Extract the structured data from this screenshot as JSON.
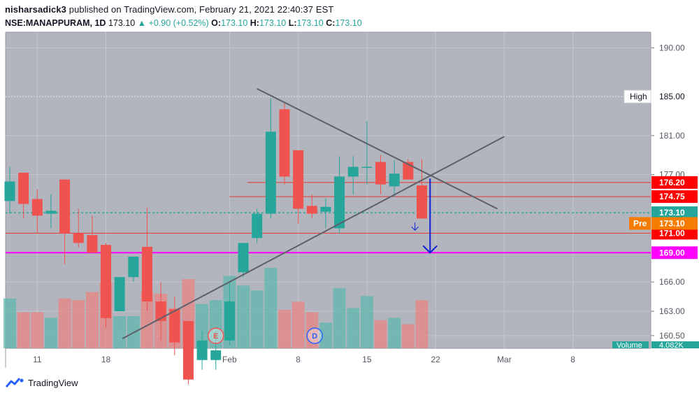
{
  "header": {
    "author": "nisharsadick3",
    "published_text": "published on TradingView.com, February 21, 2021 22:40:37 EST",
    "symbol": "NSE:MANAPPURAM, 1D",
    "last": "173.10",
    "change": "+0.90 (+0.52%)",
    "o_label": "O:",
    "o_value": "173.10",
    "h_label": "H:",
    "h_value": "173.10",
    "l_label": "L:",
    "l_value": "173.10",
    "c_label": "C:",
    "c_value": "173.10"
  },
  "footer": {
    "brand": "TradingView"
  },
  "colors": {
    "up": "#26a69a",
    "down": "#ef5350",
    "background": "#b2b5be",
    "magenta_line": "#ff00ff",
    "red_level": "#e53935",
    "arrow": "#0d1fd8",
    "trend": "#5d606b"
  },
  "chart_data": {
    "type": "candlestick",
    "symbol": "NSE:MANAPPURAM",
    "interval": "1D",
    "ylim": [
      159.2,
      191.6
    ],
    "y_ticks": [
      190.0,
      181.0,
      177.0,
      166.0,
      163.0,
      160.5
    ],
    "x_ticks": [
      {
        "label": "11",
        "idx": 2
      },
      {
        "label": "18",
        "idx": 7
      },
      {
        "label": "Feb",
        "idx": 16
      },
      {
        "label": "8",
        "idx": 21
      },
      {
        "label": "15",
        "idx": 26
      },
      {
        "label": "22",
        "idx": 31
      },
      {
        "label": "Mar",
        "idx": 36
      },
      {
        "label": "8",
        "idx": 41
      }
    ],
    "candles": [
      {
        "o": 174.3,
        "h": 177.8,
        "l": 173.0,
        "c": 176.3
      },
      {
        "o": 177.2,
        "h": 177.2,
        "l": 172.5,
        "c": 174.0
      },
      {
        "o": 174.5,
        "h": 175.5,
        "l": 171.0,
        "c": 172.8
      },
      {
        "o": 173.0,
        "h": 175.0,
        "l": 171.5,
        "c": 173.3
      },
      {
        "o": 176.5,
        "h": 176.5,
        "l": 167.8,
        "c": 171.0
      },
      {
        "o": 171.0,
        "h": 173.5,
        "l": 169.5,
        "c": 170.0
      },
      {
        "o": 170.8,
        "h": 172.8,
        "l": 169.0,
        "c": 169.0
      },
      {
        "o": 169.8,
        "h": 170.0,
        "l": 161.3,
        "c": 162.3
      },
      {
        "o": 163.0,
        "h": 166.5,
        "l": 163.0,
        "c": 166.5
      },
      {
        "o": 166.5,
        "h": 168.6,
        "l": 166.0,
        "c": 168.6
      },
      {
        "o": 169.6,
        "h": 173.6,
        "l": 163.0,
        "c": 164.0
      },
      {
        "o": 164.0,
        "h": 166.0,
        "l": 160.0,
        "c": 162.0
      },
      {
        "o": 163.2,
        "h": 164.5,
        "l": 158.5,
        "c": 159.8
      },
      {
        "o": 162.0,
        "h": 162.0,
        "l": 155.5,
        "c": 156.0
      },
      {
        "o": 158.0,
        "h": 161.0,
        "l": 157.0,
        "c": 160.0
      },
      {
        "o": 158.0,
        "h": 161.0,
        "l": 157.0,
        "c": 159.0
      },
      {
        "o": 160.0,
        "h": 166.0,
        "l": 159.5,
        "c": 164.0
      },
      {
        "o": 167.0,
        "h": 170.0,
        "l": 166.5,
        "c": 170.0
      },
      {
        "o": 170.5,
        "h": 173.5,
        "l": 170.0,
        "c": 173.0
      },
      {
        "o": 173.0,
        "h": 184.8,
        "l": 172.5,
        "c": 181.4
      },
      {
        "o": 183.7,
        "h": 184.3,
        "l": 176.0,
        "c": 176.8
      },
      {
        "o": 179.5,
        "h": 179.5,
        "l": 172.0,
        "c": 173.5
      },
      {
        "o": 173.8,
        "h": 175.0,
        "l": 172.5,
        "c": 173.0
      },
      {
        "o": 173.2,
        "h": 174.6,
        "l": 171.5,
        "c": 173.7
      },
      {
        "o": 171.5,
        "h": 178.9,
        "l": 171.0,
        "c": 176.8
      },
      {
        "o": 176.8,
        "h": 178.9,
        "l": 175.0,
        "c": 177.8
      },
      {
        "o": 177.8,
        "h": 182.5,
        "l": 176.0,
        "c": 177.8
      },
      {
        "o": 178.3,
        "h": 179.0,
        "l": 175.0,
        "c": 176.0
      },
      {
        "o": 175.8,
        "h": 178.5,
        "l": 174.7,
        "c": 177.1
      },
      {
        "o": 178.3,
        "h": 178.6,
        "l": 176.5,
        "c": 176.5
      },
      {
        "o": 175.9,
        "h": 178.6,
        "l": 172.5,
        "c": 172.5
      }
    ],
    "volume_label": "Volume",
    "volume_value": "4.082K",
    "volumes": [
      0.62,
      0.45,
      0.45,
      0.38,
      0.62,
      0.6,
      0.7,
      0.82,
      0.4,
      0.4,
      0.7,
      0.68,
      0.5,
      0.86,
      0.55,
      0.6,
      0.9,
      0.78,
      0.72,
      1.0,
      0.48,
      0.58,
      0.45,
      0.32,
      0.75,
      0.5,
      0.65,
      0.35,
      0.38,
      0.3,
      0.6
    ],
    "levels": [
      {
        "value": 176.2,
        "label": "176.20",
        "color": "#e53935",
        "bg": "#ff0000",
        "start_idx": 17.3
      },
      {
        "value": 174.75,
        "label": "174.75",
        "color": "#e53935",
        "bg": "#ff0000",
        "start_idx": 16.0
      },
      {
        "value": 171.0,
        "label": "171.00",
        "color": "#e53935",
        "bg": "#ff0000",
        "start_idx": 0
      },
      {
        "value": 169.0,
        "label": "169.00",
        "color": "#ff00ff",
        "bg": "#ff00ff",
        "start_idx": 0
      }
    ],
    "high_marker": {
      "value": 185.0,
      "text": "High",
      "label": "185.00"
    },
    "last_price": {
      "value": 173.1,
      "label": "173.10"
    },
    "pre_marker": {
      "text": "Pre",
      "label": "173.10",
      "value": 172.0
    },
    "trendlines": [
      {
        "x1": 18.0,
        "y1": 185.8,
        "x2": 35.5,
        "y2": 173.5
      },
      {
        "x1": 8.2,
        "y1": 160.2,
        "x2": 36.0,
        "y2": 180.9
      }
    ],
    "arrow": {
      "idx": 30.6,
      "from": 176.6,
      "to": 169.0
    },
    "events": [
      {
        "letter": "E",
        "idx": 15.0,
        "color": "#ef5350"
      },
      {
        "letter": "D",
        "idx": 22.2,
        "color": "#2962ff"
      }
    ]
  }
}
